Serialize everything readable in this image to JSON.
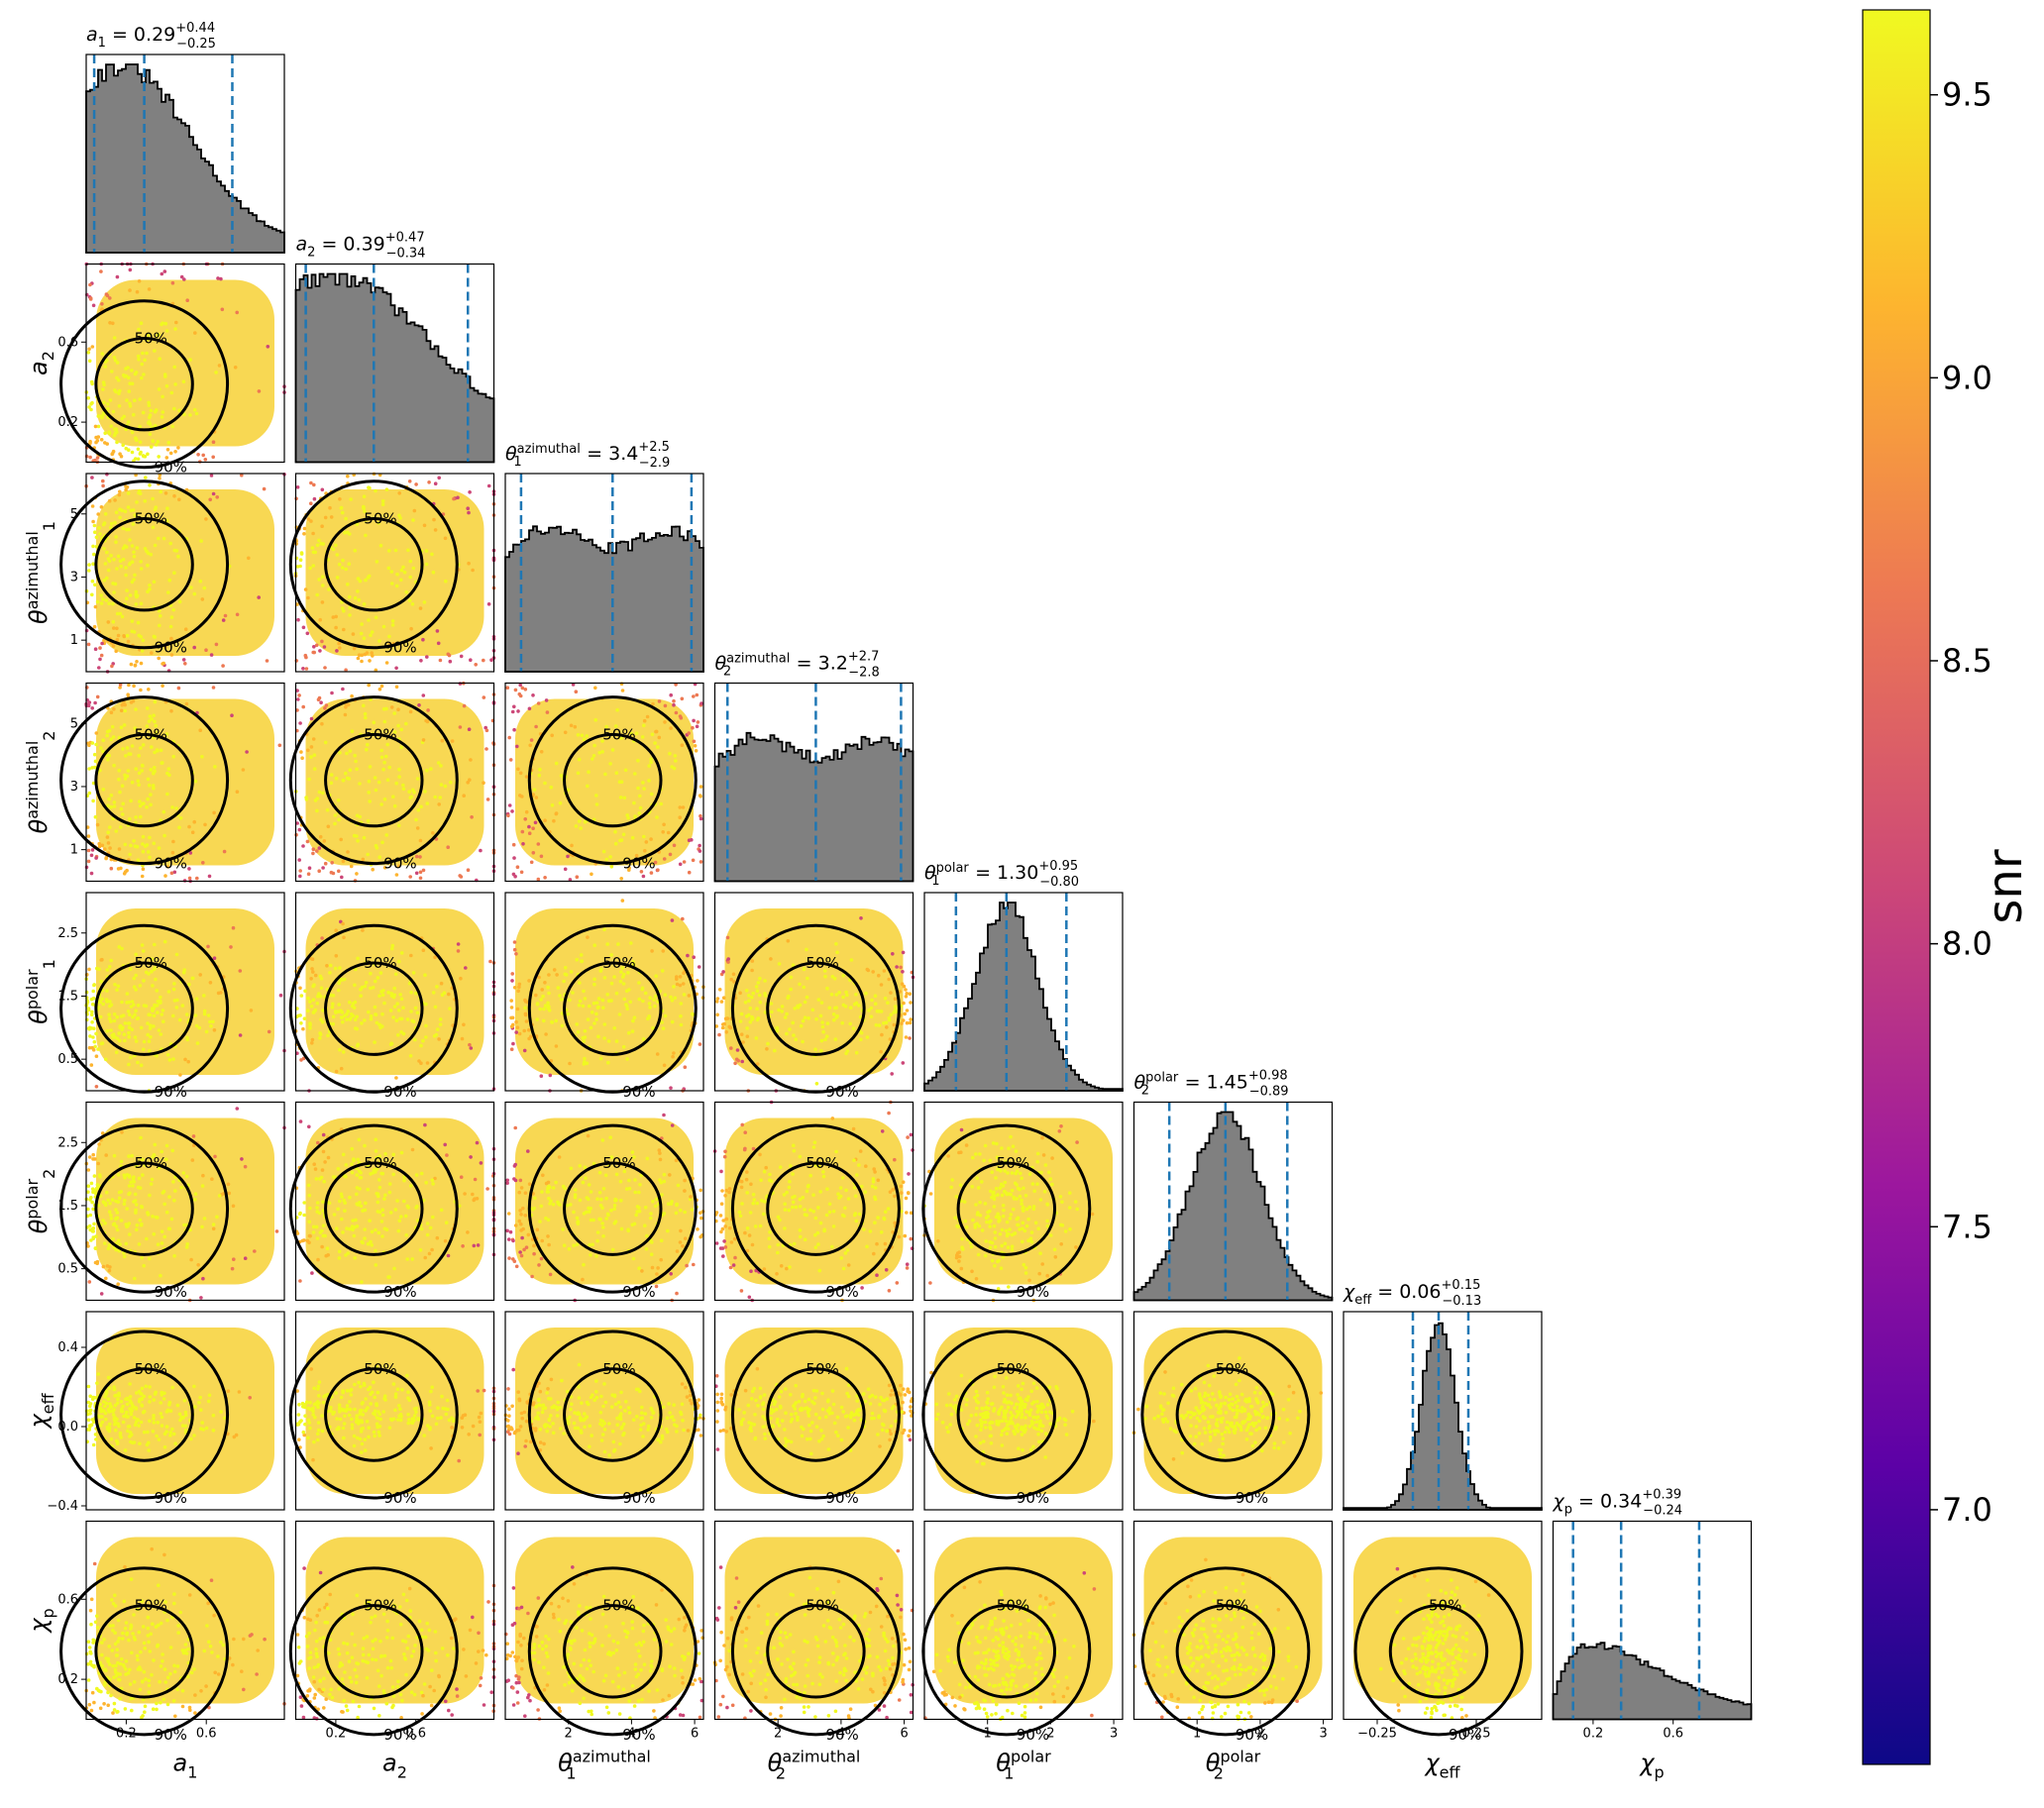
{
  "colorbar": {
    "label": "snr",
    "ticks": [
      "7.0",
      "7.5",
      "8.0",
      "8.5",
      "9.0",
      "9.5"
    ],
    "tick_values": [
      7.0,
      7.5,
      8.0,
      8.5,
      9.0,
      9.5
    ],
    "range": [
      6.55,
      9.65
    ],
    "colormap": "plasma",
    "colors": [
      "#0d0887",
      "#5c01a6",
      "#9c179e",
      "#cc4778",
      "#ed7953",
      "#fdb42f",
      "#f0f921"
    ]
  },
  "hist_color": "#808080",
  "quantile_line_color": "#1f77b4",
  "contour_levels": [
    "50%",
    "90%"
  ],
  "chart_data": {
    "type": "corner",
    "parameters": [
      {
        "label_main": "a",
        "label_sub": "1",
        "label_sup": "",
        "title_text": "0.29",
        "title_plus": "+0.44",
        "title_minus": "−0.25",
        "median": 0.29,
        "err_plus": 0.44,
        "err_minus": 0.25,
        "range": [
          0.0,
          0.99
        ],
        "ticks": [
          0.2,
          0.6
        ],
        "tick_labels": [
          "0.2",
          "0.6"
        ],
        "shape": "decay",
        "sigma": 0.3
      },
      {
        "label_main": "a",
        "label_sub": "2",
        "label_sup": "",
        "title_text": "0.39",
        "title_plus": "+0.47",
        "title_minus": "−0.34",
        "median": 0.39,
        "err_plus": 0.47,
        "err_minus": 0.34,
        "range": [
          0.0,
          0.99
        ],
        "ticks": [
          0.2,
          0.6
        ],
        "tick_labels": [
          "0.2",
          "0.6"
        ],
        "shape": "decay",
        "sigma": 0.45
      },
      {
        "label_main": "θ",
        "label_sub": "1",
        "label_sup": "azimuthal",
        "title_text": "3.4",
        "title_plus": "+2.5",
        "title_minus": "−2.9",
        "median": 3.4,
        "err_plus": 2.5,
        "err_minus": 2.9,
        "range": [
          0.0,
          6.28
        ],
        "ticks": [
          1,
          3,
          5
        ],
        "xticks": [
          2,
          4,
          6
        ],
        "tick_labels": [
          "1",
          "3",
          "5"
        ],
        "xtick_labels": [
          "2",
          "4",
          "6"
        ],
        "shape": "flat",
        "sigma": 0
      },
      {
        "label_main": "θ",
        "label_sub": "2",
        "label_sup": "azimuthal",
        "title_text": "3.2",
        "title_plus": "+2.7",
        "title_minus": "−2.8",
        "median": 3.2,
        "err_plus": 2.7,
        "err_minus": 2.8,
        "range": [
          0.0,
          6.28
        ],
        "ticks": [
          1,
          3,
          5
        ],
        "xticks": [
          2,
          4,
          6
        ],
        "tick_labels": [
          "1",
          "3",
          "5"
        ],
        "xtick_labels": [
          "2",
          "4",
          "6"
        ],
        "shape": "flat",
        "sigma": 0
      },
      {
        "label_main": "θ",
        "label_sub": "1",
        "label_sup": "polar",
        "title_text": "1.30",
        "title_plus": "+0.95",
        "title_minus": "−0.80",
        "median": 1.3,
        "err_plus": 0.95,
        "err_minus": 0.8,
        "range": [
          0.0,
          3.14
        ],
        "ticks": [
          0.5,
          1.5,
          2.5
        ],
        "xticks": [
          1,
          2,
          3
        ],
        "tick_labels": [
          "0.5",
          "1.5",
          "2.5"
        ],
        "xtick_labels": [
          "1",
          "2",
          "3"
        ],
        "shape": "peak",
        "sigma": 0.5
      },
      {
        "label_main": "θ",
        "label_sub": "2",
        "label_sup": "polar",
        "title_text": "1.45",
        "title_plus": "+0.98",
        "title_minus": "−0.89",
        "median": 1.45,
        "err_plus": 0.98,
        "err_minus": 0.89,
        "range": [
          0.0,
          3.14
        ],
        "ticks": [
          0.5,
          1.5,
          2.5
        ],
        "xticks": [
          1,
          2,
          3
        ],
        "tick_labels": [
          "0.5",
          "1.5",
          "2.5"
        ],
        "xtick_labels": [
          "1",
          "2",
          "3"
        ],
        "shape": "peak",
        "sigma": 0.57
      },
      {
        "label_main": "χ",
        "label_sub": "eff",
        "label_sup": "",
        "title_text": "0.06",
        "title_plus": "+0.15",
        "title_minus": "−0.13",
        "median": 0.06,
        "err_plus": 0.15,
        "err_minus": 0.13,
        "range": [
          -0.42,
          0.58
        ],
        "ticks": [
          -0.4,
          0.0,
          0.4
        ],
        "xticks": [
          -0.25,
          0.25
        ],
        "tick_labels": [
          "−0.4",
          "0.0",
          "0.4"
        ],
        "xtick_labels": [
          "−0.25",
          "0.25"
        ],
        "shape": "peak",
        "sigma": 0.085
      },
      {
        "label_main": "χ",
        "label_sub": "p",
        "label_sup": "",
        "title_text": "0.34",
        "title_plus": "+0.39",
        "title_minus": "−0.24",
        "median": 0.34,
        "err_plus": 0.39,
        "err_minus": 0.24,
        "range": [
          0.0,
          0.99
        ],
        "ticks": [
          0.2,
          0.6
        ],
        "tick_labels": [
          "0.2",
          "0.6"
        ],
        "shape": "skew",
        "sigma": 0.2
      }
    ]
  }
}
